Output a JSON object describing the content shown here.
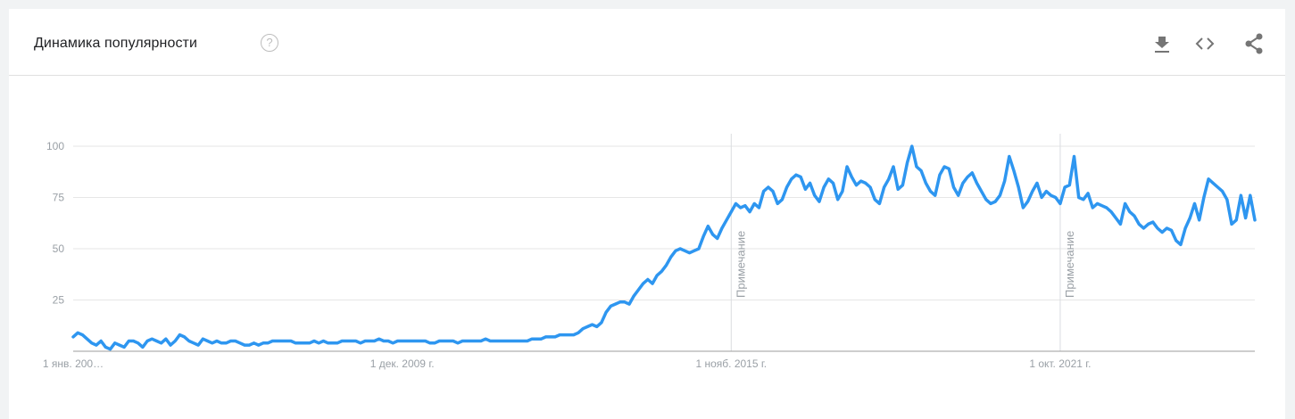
{
  "widget": {
    "title": "Динамика популярности",
    "help_glyph": "?",
    "toolbar": [
      {
        "name": "download-icon",
        "interactable": true
      },
      {
        "name": "embed-code-icon",
        "interactable": true
      },
      {
        "name": "share-icon",
        "interactable": true
      }
    ]
  },
  "colors": {
    "line": "#2e96f0",
    "grid": "#e6e6e6",
    "axis": "#9e9e9e",
    "note_line": "#dadce0",
    "text_muted": "#9aa0a6"
  },
  "chart_data": {
    "type": "line",
    "title": "",
    "xlabel": "",
    "ylabel": "",
    "ylim": [
      0,
      100
    ],
    "yticks": [
      25,
      50,
      75,
      100
    ],
    "grid": true,
    "x_start": "2004-01",
    "x_step": "month",
    "xticks": [
      {
        "label": "1 янв. 200…",
        "index": 0
      },
      {
        "label": "1 дек. 2009 г.",
        "index": 71
      },
      {
        "label": "1 нояб. 2015 г.",
        "index": 142
      },
      {
        "label": "1 окт. 2021 г.",
        "index": 213
      }
    ],
    "annotations": [
      {
        "label": "Примечание",
        "index": 142
      },
      {
        "label": "Примечание",
        "index": 213
      }
    ],
    "series": [
      {
        "values": [
          7,
          9,
          8,
          6,
          4,
          3,
          5,
          2,
          1,
          4,
          3,
          2,
          5,
          5,
          4,
          2,
          5,
          6,
          5,
          4,
          6,
          3,
          5,
          8,
          7,
          5,
          4,
          3,
          6,
          5,
          4,
          5,
          4,
          4,
          5,
          5,
          4,
          3,
          3,
          4,
          3,
          4,
          4,
          5,
          5,
          5,
          5,
          5,
          4,
          4,
          4,
          4,
          5,
          4,
          5,
          4,
          4,
          4,
          5,
          5,
          5,
          5,
          4,
          5,
          5,
          5,
          6,
          5,
          5,
          4,
          5,
          5,
          5,
          5,
          5,
          5,
          5,
          4,
          4,
          5,
          5,
          5,
          5,
          4,
          5,
          5,
          5,
          5,
          5,
          6,
          5,
          5,
          5,
          5,
          5,
          5,
          5,
          5,
          5,
          6,
          6,
          6,
          7,
          7,
          7,
          8,
          8,
          8,
          8,
          9,
          11,
          12,
          13,
          12,
          14,
          19,
          22,
          23,
          24,
          24,
          23,
          27,
          30,
          33,
          35,
          33,
          37,
          39,
          42,
          46,
          49,
          50,
          49,
          48,
          49,
          50,
          56,
          61,
          57,
          55,
          60,
          64,
          68,
          72,
          70,
          71,
          68,
          72,
          70,
          78,
          80,
          78,
          72,
          74,
          80,
          84,
          86,
          85,
          79,
          82,
          76,
          73,
          80,
          84,
          82,
          74,
          78,
          90,
          85,
          81,
          83,
          82,
          80,
          74,
          72,
          80,
          84,
          90,
          79,
          81,
          92,
          100,
          90,
          88,
          82,
          78,
          76,
          86,
          90,
          89,
          80,
          76,
          82,
          85,
          87,
          82,
          78,
          74,
          72,
          73,
          76,
          83,
          95,
          88,
          80,
          70,
          73,
          78,
          82,
          75,
          78,
          76,
          75,
          72,
          80,
          81,
          95,
          75,
          74,
          77,
          70,
          72,
          71,
          70,
          68,
          65,
          62,
          72,
          68,
          66,
          62,
          60,
          62,
          63,
          60,
          58,
          60,
          59,
          54,
          52,
          60,
          65,
          72,
          64,
          75,
          84,
          82,
          80,
          78,
          74,
          62,
          64,
          76,
          65,
          76,
          64
        ]
      }
    ]
  }
}
